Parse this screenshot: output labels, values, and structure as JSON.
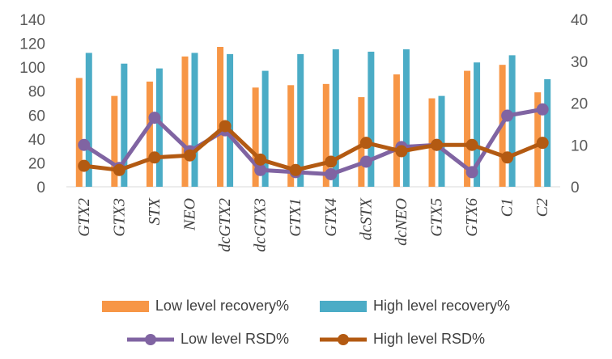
{
  "chart_data": {
    "type": "bar",
    "categories": [
      "GTX2",
      "GTX3",
      "STX",
      "NEO",
      "dcGTX2",
      "dcGTX3",
      "GTX1",
      "GTX4",
      "dcSTX",
      "dcNEO",
      "GTX5",
      "GTX6",
      "C1",
      "C2"
    ],
    "series": [
      {
        "name": "Low level recovery%",
        "kind": "bar",
        "axis": "left",
        "color": "#F79646",
        "values": [
          91,
          76,
          88,
          109,
          117,
          83,
          85,
          86,
          75,
          94,
          74,
          97,
          102,
          79
        ]
      },
      {
        "name": "High level recovery%",
        "kind": "bar",
        "axis": "left",
        "color": "#4BACC6",
        "values": [
          112,
          103,
          99,
          112,
          111,
          97,
          111,
          115,
          113,
          115,
          76,
          104,
          110,
          90
        ]
      },
      {
        "name": "Low level RSD%",
        "kind": "line",
        "axis": "right",
        "color": "#8064A2",
        "values": [
          10,
          4.5,
          16.5,
          8.5,
          13.5,
          4,
          3.5,
          3,
          6,
          9.5,
          10,
          3.5,
          17,
          18.5
        ]
      },
      {
        "name": "High level RSD%",
        "kind": "line",
        "axis": "right",
        "color": "#B35A12",
        "values": [
          5,
          4,
          7,
          7.5,
          14.5,
          6.5,
          4,
          6,
          10.5,
          8.5,
          10,
          10,
          7,
          10.5
        ]
      }
    ],
    "yleft": {
      "min": 0,
      "max": 140,
      "ticks": [
        0,
        20,
        40,
        60,
        80,
        100,
        120,
        140
      ]
    },
    "yright": {
      "min": 0,
      "max": 40,
      "ticks": [
        0,
        10,
        20,
        30,
        40
      ]
    },
    "grid": false,
    "legend_position": "bottom"
  }
}
